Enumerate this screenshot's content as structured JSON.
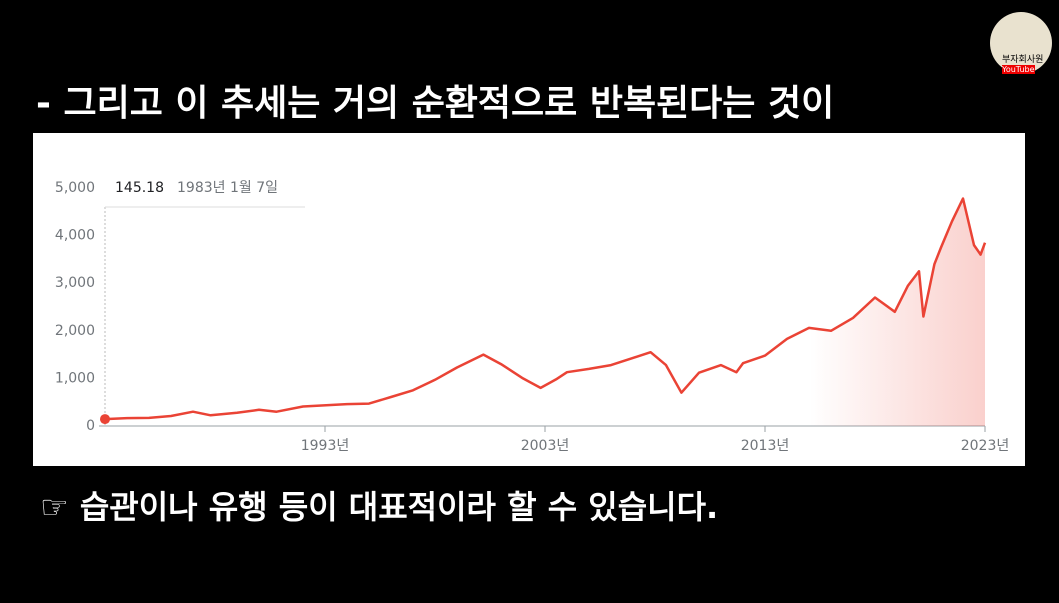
{
  "slide": {
    "heading": "- 그리고 이 추세는 거의 순환적으로 반복된다는 것이",
    "caption": "☞ 습관이나 유행 등이 대표적이라 할 수 있습니다.",
    "channel": "부자회사원",
    "platform": "YouTube"
  },
  "chart_data": {
    "type": "line",
    "color": "#ea4335",
    "tooltip": {
      "value": 145.18,
      "date": "1983년 1월 7일"
    },
    "x": [
      1983,
      1984,
      1985,
      1986,
      1987,
      1987.8,
      1989,
      1990,
      1990.8,
      1992,
      1994,
      1995,
      1996,
      1997,
      1998,
      1999,
      2000.2,
      2001,
      2002,
      2002.8,
      2003.5,
      2004,
      2005,
      2006,
      2007,
      2007.8,
      2008.5,
      2009.2,
      2010,
      2011,
      2011.7,
      2012,
      2013,
      2014,
      2015,
      2016,
      2017,
      2018,
      2018.9,
      2019.5,
      2020,
      2020.2,
      2020.7,
      2021,
      2021.5,
      2022,
      2022.5,
      2022.8,
      2023
    ],
    "values": [
      145,
      165,
      170,
      210,
      300,
      225,
      280,
      340,
      300,
      410,
      460,
      470,
      610,
      750,
      970,
      1230,
      1500,
      1300,
      1000,
      800,
      980,
      1130,
      1200,
      1280,
      1430,
      1550,
      1280,
      700,
      1120,
      1280,
      1130,
      1320,
      1480,
      1830,
      2060,
      2000,
      2270,
      2700,
      2400,
      2950,
      3250,
      2300,
      3400,
      3750,
      4300,
      4780,
      3800,
      3600,
      3850
    ],
    "xlim": [
      1983,
      2023
    ],
    "xticks": [
      {
        "value": 1993,
        "label": "1993년"
      },
      {
        "value": 2003,
        "label": "2003년"
      },
      {
        "value": 2013,
        "label": "2013년"
      },
      {
        "value": 2023,
        "label": "2023년"
      }
    ],
    "ylim": [
      0,
      5000
    ],
    "yticks": [
      0,
      {
        "value": 1000,
        "label": "1,000"
      },
      {
        "value": 2000,
        "label": "2,000"
      },
      {
        "value": 3000,
        "label": "3,000"
      },
      {
        "value": 4000,
        "label": "4,000"
      },
      {
        "value": 5000,
        "label": "5,000"
      }
    ],
    "grid": true
  }
}
